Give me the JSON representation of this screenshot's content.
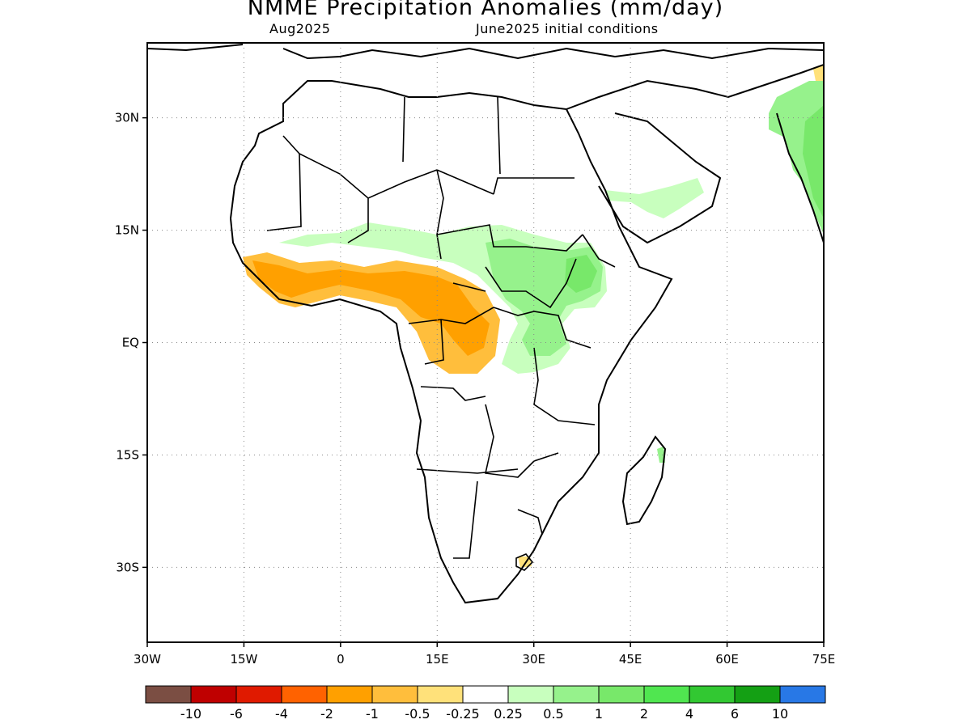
{
  "title": "NMME Precipitation Anomalies (mm/day)",
  "subtitle_left": "Aug2025",
  "subtitle_right": "June2025 initial conditions",
  "map": {
    "lon_range": [
      -30,
      75
    ],
    "lat_range": [
      -40,
      40
    ],
    "x_ticks": [
      {
        "value": -30,
        "label": "30W"
      },
      {
        "value": -15,
        "label": "15W"
      },
      {
        "value": 0,
        "label": "0"
      },
      {
        "value": 15,
        "label": "15E"
      },
      {
        "value": 30,
        "label": "30E"
      },
      {
        "value": 45,
        "label": "45E"
      },
      {
        "value": 60,
        "label": "60E"
      },
      {
        "value": 75,
        "label": "75E"
      }
    ],
    "y_ticks": [
      {
        "value": 30,
        "label": "30N"
      },
      {
        "value": 15,
        "label": "15N"
      },
      {
        "value": 0,
        "label": "EQ"
      },
      {
        "value": -15,
        "label": "15S"
      },
      {
        "value": -30,
        "label": "30S"
      }
    ],
    "grid": "dotted"
  },
  "colorbar": {
    "colors": [
      "#7b4e43",
      "#bf0000",
      "#e01a00",
      "#ff6200",
      "#ffa000",
      "#ffbe3c",
      "#ffe17a",
      "#ffffff",
      "#c8ffbe",
      "#96f28c",
      "#78e86a",
      "#50e650",
      "#32c832",
      "#14a014",
      "#2878e6"
    ],
    "labels": [
      "-10",
      "-6",
      "-4",
      "-2",
      "-1",
      "-0.5",
      "-0.25",
      "0.25",
      "0.5",
      "1",
      "2",
      "4",
      "6",
      "10"
    ]
  }
}
